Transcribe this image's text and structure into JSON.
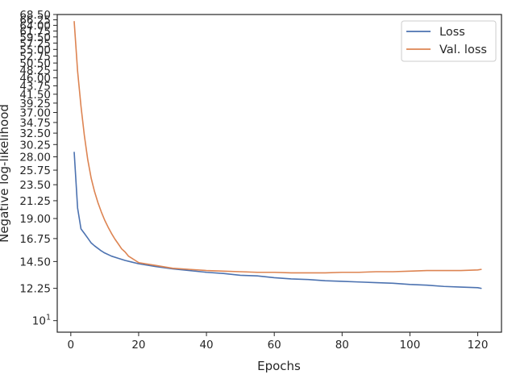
{
  "chart_data": {
    "type": "line",
    "xlabel": "Epochs",
    "ylabel": "Negative log-likelihood",
    "xlim": [
      -4,
      127
    ],
    "ylim": [
      9.3,
      68.5
    ],
    "yscale": "log",
    "x_ticks": [
      0,
      20,
      40,
      60,
      80,
      100,
      120
    ],
    "y_ticks": [
      {
        "value": 10,
        "label": "10",
        "superscript": "1"
      },
      {
        "value": 12.25,
        "label": "12.25"
      },
      {
        "value": 14.5,
        "label": "14.50"
      },
      {
        "value": 16.75,
        "label": "16.75"
      },
      {
        "value": 19.0,
        "label": "19.00"
      },
      {
        "value": 21.25,
        "label": "21.25"
      },
      {
        "value": 23.5,
        "label": "23.50"
      },
      {
        "value": 25.75,
        "label": "25.75"
      },
      {
        "value": 28.0,
        "label": "28.00"
      },
      {
        "value": 30.25,
        "label": "30.25"
      },
      {
        "value": 32.5,
        "label": "32.50"
      },
      {
        "value": 34.75,
        "label": "34.75"
      },
      {
        "value": 37.0,
        "label": "37.00"
      },
      {
        "value": 39.25,
        "label": "39.25"
      },
      {
        "value": 41.5,
        "label": "41.50"
      },
      {
        "value": 43.75,
        "label": "43.75"
      },
      {
        "value": 46.0,
        "label": "46.00"
      },
      {
        "value": 48.25,
        "label": "48.25"
      },
      {
        "value": 50.5,
        "label": "50.50"
      },
      {
        "value": 52.75,
        "label": "52.75"
      },
      {
        "value": 55.0,
        "label": "55.00"
      },
      {
        "value": 57.25,
        "label": "57.25"
      },
      {
        "value": 59.5,
        "label": "59.50"
      },
      {
        "value": 61.75,
        "label": "61.75"
      },
      {
        "value": 64.0,
        "label": "64.00"
      },
      {
        "value": 66.25,
        "label": "66.25"
      },
      {
        "value": 68.5,
        "label": "68.50"
      }
    ],
    "grid": false,
    "legend": {
      "placement": "top-right"
    },
    "series": [
      {
        "name": "Loss",
        "color": "#4c72b0",
        "x": [
          1,
          2,
          3,
          4,
          5,
          6,
          7,
          8,
          9,
          10,
          12,
          14,
          16,
          18,
          20,
          25,
          30,
          35,
          40,
          45,
          50,
          55,
          60,
          65,
          70,
          75,
          80,
          85,
          90,
          95,
          100,
          105,
          110,
          115,
          120,
          121
        ],
        "y": [
          28.8,
          20.3,
          17.8,
          17.3,
          16.8,
          16.3,
          16.0,
          15.75,
          15.5,
          15.3,
          15.0,
          14.8,
          14.6,
          14.45,
          14.3,
          14.05,
          13.85,
          13.7,
          13.55,
          13.45,
          13.3,
          13.25,
          13.1,
          13.0,
          12.95,
          12.85,
          12.8,
          12.75,
          12.7,
          12.65,
          12.55,
          12.5,
          12.4,
          12.35,
          12.3,
          12.25
        ]
      },
      {
        "name": "Val. loss",
        "color": "#dd8452",
        "x": [
          1,
          2,
          3,
          4,
          5,
          6,
          7,
          8,
          9,
          10,
          11,
          12,
          13,
          14,
          15,
          16,
          17,
          18,
          19,
          20,
          22,
          25,
          28,
          30,
          35,
          40,
          45,
          50,
          55,
          60,
          65,
          70,
          75,
          80,
          85,
          90,
          95,
          100,
          105,
          110,
          115,
          120,
          121
        ],
        "y": [
          65.5,
          48.0,
          38.5,
          32.0,
          27.5,
          24.5,
          22.5,
          21.0,
          19.8,
          18.8,
          18.0,
          17.3,
          16.7,
          16.2,
          15.7,
          15.4,
          15.0,
          14.8,
          14.6,
          14.4,
          14.3,
          14.15,
          14.0,
          13.9,
          13.8,
          13.7,
          13.65,
          13.6,
          13.55,
          13.55,
          13.5,
          13.5,
          13.5,
          13.55,
          13.55,
          13.6,
          13.6,
          13.65,
          13.7,
          13.7,
          13.7,
          13.75,
          13.8
        ]
      }
    ]
  }
}
